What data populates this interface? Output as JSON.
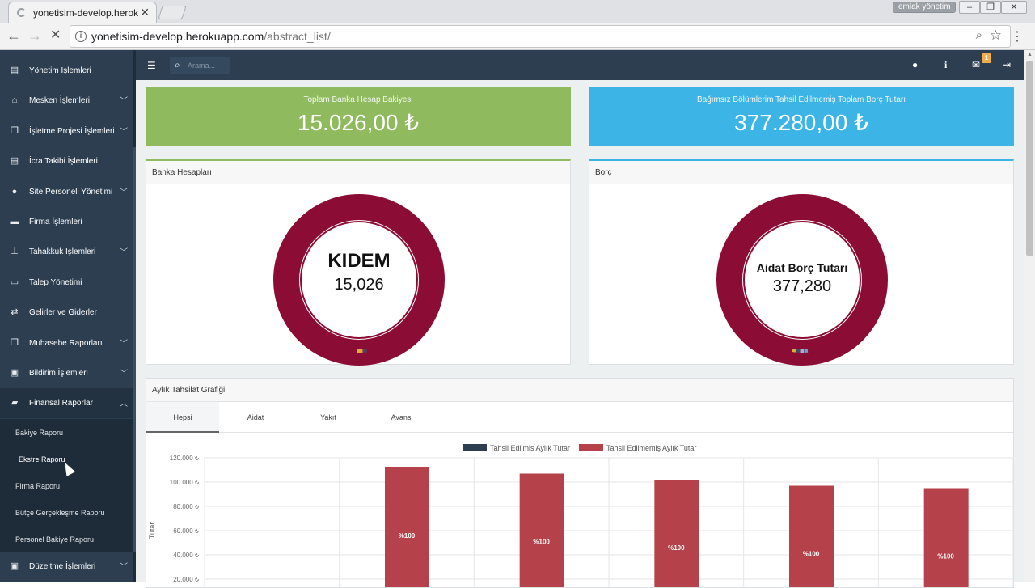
{
  "browser": {
    "tab_title": "yonetisim-develop.herokuapp.com",
    "profile": "emlak yönetim",
    "url_host": "yonetisim-develop.herokuapp.com",
    "url_path": "/abstract_list/"
  },
  "search": {
    "placeholder": "Arama..."
  },
  "header": {
    "notification_count": "1"
  },
  "sidebar": {
    "items": [
      {
        "label": "Yönetim İşlemleri",
        "icon": "building-icon",
        "has_sub": false
      },
      {
        "label": "Mesken İşlemleri",
        "icon": "home-icon",
        "has_sub": true
      },
      {
        "label": "İşletme Projesi İşlemleri",
        "icon": "copy-icon",
        "has_sub": true
      },
      {
        "label": "İcra Takibi İşlemleri",
        "icon": "document-icon",
        "has_sub": false
      },
      {
        "label": "Site Personeli Yönetimi",
        "icon": "user-icon",
        "has_sub": true
      },
      {
        "label": "Firma İşlemleri",
        "icon": "briefcase-icon",
        "has_sub": false
      },
      {
        "label": "Tahakkuk İşlemleri",
        "icon": "split-icon",
        "has_sub": true
      },
      {
        "label": "Talep Yönetimi",
        "icon": "card-icon",
        "has_sub": false
      },
      {
        "label": "Gelirler ve Giderler",
        "icon": "exchange-icon",
        "has_sub": false
      },
      {
        "label": "Muhasebe Raporları",
        "icon": "copy-icon",
        "has_sub": true
      },
      {
        "label": "Bildirim İşlemleri",
        "icon": "inbox-icon",
        "has_sub": true
      },
      {
        "label": "Finansal Raporlar",
        "icon": "folder-icon",
        "has_sub": true
      }
    ],
    "finance_sub": [
      "Bakiye Raporu",
      "Ekstre Raporu",
      "Firma Raporu",
      "Bütçe Gerçekleşme Raporu",
      "Personel Bakiye Raporu"
    ],
    "last_item": {
      "label": "Düzeltme İşlemleri",
      "icon": "inbox-icon"
    }
  },
  "stats": {
    "bank": {
      "label": "Toplam Banka Hesap Bakiyesi",
      "value": "15.026,00 ₺",
      "color": "#8fba5e"
    },
    "debt": {
      "label": "Bağımsız Bölümlerim Tahsil Edilmemiş Toplam Borç Tutarı",
      "value": "377.280,00 ₺",
      "color": "#3cb4e5"
    }
  },
  "panels": {
    "bank": {
      "title": "Banka Hesapları",
      "center_name": "KIDEM",
      "center_value": "15,026"
    },
    "debt": {
      "title": "Borç",
      "center_name": "Aidat Borç Tutarı",
      "center_value": "377,280"
    },
    "monthly": {
      "title": "Aylık Tahsilat Grafiği"
    }
  },
  "tabs": [
    "Hepsi",
    "Aidat",
    "Yakıt",
    "Avans"
  ],
  "chart_data": {
    "type": "bar",
    "title": "",
    "xlabel": "",
    "ylabel": "Tutar",
    "legend_position": "top-center",
    "ylim": [
      0,
      120000
    ],
    "y_ticks": [
      {
        "value": 120000,
        "label": "120.000 ₺"
      },
      {
        "value": 100000,
        "label": "100.000 ₺"
      },
      {
        "value": 80000,
        "label": "80.000 ₺"
      },
      {
        "value": 60000,
        "label": "60.000 ₺"
      },
      {
        "value": 40000,
        "label": "40.000 ₺"
      },
      {
        "value": 20000,
        "label": "20.000 ₺"
      }
    ],
    "series": [
      {
        "name": "Tahsil Edilmis Aylık Tutar",
        "color": "#2c3e50",
        "values": [
          0,
          0,
          0,
          0,
          0,
          0
        ]
      },
      {
        "name": "Tahsil Edilmemiş Aylık Tutar",
        "color": "#b5424a",
        "values": [
          null,
          112000,
          107000,
          102000,
          97000,
          95000
        ],
        "labels": [
          "",
          "%100",
          "%100",
          "%100",
          "%100",
          "%100"
        ]
      }
    ],
    "grid": true
  },
  "donut_colors": {
    "main": "#8b0d36",
    "accents": [
      "#e6a93a",
      "#3a4d66",
      "#9bb3d6",
      "#6fa1c8"
    ]
  }
}
